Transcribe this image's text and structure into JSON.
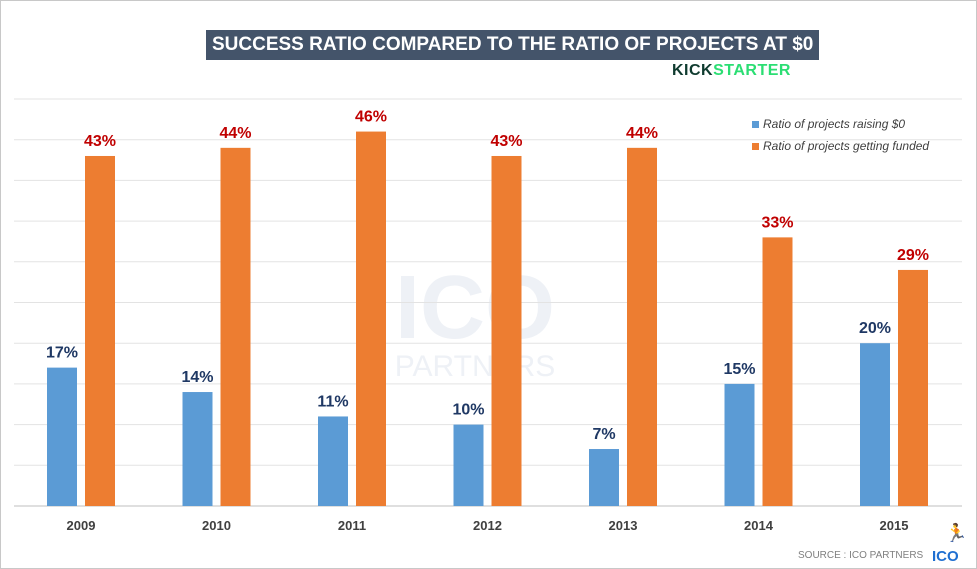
{
  "chart_data": {
    "type": "bar",
    "title": "SUCCESS RATIO COMPARED TO THE RATIO OF PROJECTS AT $0",
    "categories": [
      "2009",
      "2010",
      "2011",
      "2012",
      "2013",
      "2014",
      "2015"
    ],
    "series": [
      {
        "name": "Ratio of projects raising $0",
        "values": [
          17,
          14,
          11,
          10,
          7,
          15,
          20
        ],
        "color": "#5b9bd5",
        "label_color": "#1f3864"
      },
      {
        "name": "Ratio of projects getting funded",
        "values": [
          43,
          44,
          46,
          43,
          44,
          33,
          29
        ],
        "color": "#ed7d31",
        "label_color": "#c00000"
      }
    ],
    "value_suffix": "%",
    "ylim": [
      0,
      50
    ],
    "grid_step": 5,
    "grid": true,
    "legend_position": "top-right",
    "xlabel": "",
    "ylabel": ""
  },
  "brand": {
    "kick": "KICK",
    "starter": "STARTER"
  },
  "watermark": {
    "line1": "ICO",
    "line2": "PARTNERS"
  },
  "source": "SOURCE : ICO PARTNERS",
  "source_logo": "ICO"
}
